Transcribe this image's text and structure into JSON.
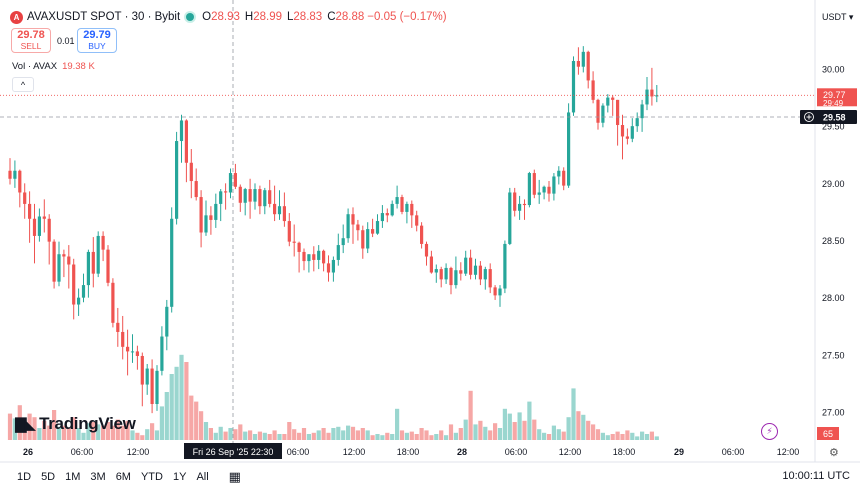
{
  "header": {
    "coin_icon_text": "A",
    "symbol": "AVAXUSDT SPOT · 30 · Bybit",
    "ohlc": [
      {
        "label": "O",
        "value": "28.93"
      },
      {
        "label": "H",
        "value": "28.99"
      },
      {
        "label": "L",
        "value": "28.83"
      },
      {
        "label": "C",
        "value": "28.88"
      }
    ],
    "change": "−0.05 (−0.17%)"
  },
  "trade": {
    "sell_price": "29.78",
    "sell_label": "SELL",
    "spread": "0.01",
    "buy_price": "29.79",
    "buy_label": "BUY"
  },
  "volume_indicator": {
    "label": "Vol · AVAX",
    "value": "19.38 K"
  },
  "collapse_icon": "chevron-up-icon",
  "currency": "USDT",
  "logo_text": "TradingView",
  "crosshair_label": "Fri 26 Sep '25   22:30",
  "timeframes": [
    "1D",
    "5D",
    "1M",
    "3M",
    "6M",
    "YTD",
    "1Y",
    "All"
  ],
  "time_display": "10:00:11 UTC",
  "colors": {
    "up": "#26a69a",
    "down": "#ef5350",
    "up_vol": "#9ad6cf",
    "down_vol": "#f6a7a6",
    "grid": "#f0f3fa"
  },
  "chart_data": {
    "type": "candlestick",
    "ylim": [
      26.7,
      30.5
    ],
    "y_ticks": [
      27.0,
      27.5,
      28.0,
      28.5,
      29.0,
      29.5,
      30.0
    ],
    "x_ticks": [
      "26",
      "06:00",
      "12:00",
      "06:00",
      "12:00",
      "18:00",
      "28",
      "06:00",
      "12:00",
      "18:00",
      "29",
      "06:00",
      "12:00"
    ],
    "price_labels": [
      {
        "value": "29.77",
        "sub": "29:49",
        "type": "last"
      },
      {
        "value": "29.58",
        "type": "crosshair"
      }
    ],
    "volume_last": "65",
    "candles": [
      [
        29.11,
        29.04,
        29.22,
        28.99,
        2.2
      ],
      [
        29.04,
        29.11,
        29.2,
        28.96,
        1.8
      ],
      [
        29.11,
        28.92,
        29.12,
        28.79,
        2.9
      ],
      [
        28.92,
        28.82,
        29.0,
        28.69,
        1.2
      ],
      [
        28.82,
        28.69,
        28.93,
        28.48,
        2.2
      ],
      [
        28.69,
        28.54,
        28.82,
        28.3,
        1.9
      ],
      [
        28.54,
        28.71,
        28.78,
        28.49,
        1.0
      ],
      [
        28.71,
        28.69,
        28.86,
        28.57,
        1.6
      ],
      [
        28.69,
        28.49,
        28.73,
        28.29,
        1.2
      ],
      [
        28.49,
        28.14,
        28.51,
        28.08,
        2.5
      ],
      [
        28.14,
        28.38,
        28.49,
        28.1,
        1.1
      ],
      [
        28.38,
        28.36,
        28.42,
        28.18,
        1.2
      ],
      [
        28.36,
        28.29,
        28.46,
        28.08,
        1.0
      ],
      [
        28.29,
        27.94,
        28.34,
        27.81,
        1.9
      ],
      [
        27.94,
        28.0,
        28.08,
        27.84,
        1.0
      ],
      [
        28.0,
        28.11,
        28.21,
        27.96,
        0.6
      ],
      [
        28.11,
        28.4,
        28.42,
        28.0,
        1.4
      ],
      [
        28.4,
        28.21,
        28.53,
        28.09,
        1.5
      ],
      [
        28.21,
        28.54,
        28.58,
        28.18,
        1.3
      ],
      [
        28.54,
        28.42,
        28.58,
        28.32,
        1.2
      ],
      [
        28.42,
        28.13,
        28.46,
        28.1,
        1.5
      ],
      [
        28.13,
        27.78,
        28.17,
        27.74,
        1.2
      ],
      [
        27.78,
        27.7,
        27.91,
        27.57,
        1.7
      ],
      [
        27.7,
        27.57,
        27.84,
        27.46,
        1.2
      ],
      [
        27.57,
        27.53,
        27.72,
        27.32,
        1.6
      ],
      [
        27.53,
        27.53,
        27.68,
        27.43,
        0.8
      ],
      [
        27.53,
        27.49,
        27.58,
        27.37,
        0.6
      ],
      [
        27.49,
        27.24,
        27.52,
        27.05,
        0.4
      ],
      [
        27.24,
        27.38,
        27.42,
        27.15,
        0.9
      ],
      [
        27.38,
        27.07,
        27.46,
        26.99,
        1.4
      ],
      [
        27.07,
        27.36,
        27.41,
        27.01,
        0.8
      ],
      [
        27.36,
        27.66,
        27.75,
        27.32,
        2.8
      ],
      [
        27.66,
        27.92,
        27.98,
        27.54,
        4.0
      ],
      [
        27.92,
        28.69,
        28.79,
        27.87,
        5.5
      ],
      [
        28.69,
        29.37,
        29.45,
        28.64,
        6.1
      ],
      [
        29.37,
        29.55,
        29.6,
        29.18,
        7.1
      ],
      [
        29.55,
        29.18,
        29.56,
        29.01,
        6.5
      ],
      [
        29.18,
        29.02,
        29.3,
        28.87,
        3.7
      ],
      [
        29.02,
        28.88,
        29.13,
        28.85,
        3.2
      ],
      [
        28.88,
        28.57,
        28.94,
        28.44,
        2.4
      ],
      [
        28.57,
        28.72,
        28.85,
        28.54,
        1.5
      ],
      [
        28.72,
        28.68,
        28.8,
        28.55,
        1.0
      ],
      [
        28.68,
        28.82,
        28.91,
        28.61,
        0.6
      ],
      [
        28.82,
        28.93,
        28.95,
        28.67,
        1.1
      ],
      [
        28.93,
        28.92,
        29.0,
        28.77,
        0.7
      ],
      [
        28.92,
        29.09,
        29.13,
        28.87,
        1.0
      ],
      [
        29.09,
        28.97,
        29.17,
        28.95,
        0.9
      ],
      [
        28.97,
        28.83,
        28.99,
        28.75,
        1.3
      ],
      [
        28.83,
        28.95,
        28.96,
        28.72,
        0.7
      ],
      [
        28.95,
        28.84,
        29.04,
        28.69,
        0.8
      ],
      [
        28.84,
        28.95,
        29.0,
        28.77,
        0.5
      ],
      [
        28.95,
        28.8,
        28.98,
        28.73,
        0.7
      ],
      [
        28.8,
        28.94,
        28.96,
        28.73,
        0.6
      ],
      [
        28.94,
        28.82,
        29.03,
        28.79,
        0.5
      ],
      [
        28.82,
        28.73,
        28.98,
        28.67,
        0.8
      ],
      [
        28.73,
        28.8,
        28.94,
        28.68,
        0.5
      ],
      [
        28.8,
        28.67,
        28.92,
        28.62,
        0.5
      ],
      [
        28.67,
        28.49,
        28.74,
        28.45,
        1.5
      ],
      [
        28.49,
        28.48,
        28.64,
        28.36,
        0.9
      ],
      [
        28.48,
        28.4,
        28.49,
        28.22,
        0.6
      ],
      [
        28.4,
        28.32,
        28.43,
        28.24,
        1.0
      ],
      [
        28.32,
        28.38,
        28.38,
        28.22,
        0.5
      ],
      [
        28.38,
        28.33,
        28.45,
        28.23,
        0.6
      ],
      [
        28.33,
        28.41,
        28.46,
        28.25,
        0.8
      ],
      [
        28.41,
        28.3,
        28.42,
        28.23,
        1.0
      ],
      [
        28.3,
        28.22,
        28.37,
        28.14,
        0.6
      ],
      [
        28.22,
        28.33,
        28.36,
        28.14,
        1.0
      ],
      [
        28.33,
        28.46,
        28.56,
        28.28,
        1.1
      ],
      [
        28.46,
        28.52,
        28.64,
        28.39,
        0.8
      ],
      [
        28.52,
        28.73,
        28.78,
        28.48,
        1.2
      ],
      [
        28.73,
        28.64,
        28.79,
        28.47,
        1.1
      ],
      [
        28.64,
        28.59,
        28.68,
        28.5,
        0.8
      ],
      [
        28.59,
        28.43,
        28.63,
        28.34,
        1.0
      ],
      [
        28.43,
        28.6,
        28.66,
        28.39,
        0.8
      ],
      [
        28.6,
        28.56,
        28.69,
        28.53,
        0.4
      ],
      [
        28.56,
        28.67,
        28.73,
        28.55,
        0.5
      ],
      [
        28.67,
        28.74,
        28.81,
        28.61,
        0.4
      ],
      [
        28.74,
        28.72,
        28.78,
        28.66,
        0.6
      ],
      [
        28.72,
        28.82,
        28.85,
        28.71,
        0.5
      ],
      [
        28.82,
        28.88,
        28.98,
        28.78,
        2.6
      ],
      [
        28.88,
        28.75,
        28.9,
        28.73,
        0.8
      ],
      [
        28.75,
        28.82,
        28.84,
        28.65,
        0.6
      ],
      [
        28.82,
        28.72,
        28.85,
        28.61,
        0.7
      ],
      [
        28.72,
        28.63,
        28.76,
        28.58,
        0.5
      ],
      [
        28.63,
        28.47,
        28.66,
        28.43,
        1.0
      ],
      [
        28.47,
        28.36,
        28.49,
        28.28,
        0.8
      ],
      [
        28.36,
        28.22,
        28.41,
        28.21,
        0.4
      ],
      [
        28.22,
        28.25,
        28.29,
        28.13,
        0.5
      ],
      [
        28.25,
        28.16,
        28.27,
        28.09,
        0.8
      ],
      [
        28.16,
        28.26,
        28.3,
        28.12,
        0.4
      ],
      [
        28.26,
        28.11,
        28.27,
        28.03,
        1.3
      ],
      [
        28.11,
        28.24,
        28.36,
        28.08,
        0.6
      ],
      [
        28.24,
        28.21,
        28.31,
        28.15,
        1.0
      ],
      [
        28.21,
        28.35,
        28.41,
        28.19,
        1.7
      ],
      [
        28.35,
        28.2,
        28.42,
        28.16,
        4.1
      ],
      [
        28.2,
        28.28,
        28.34,
        28.16,
        1.3
      ],
      [
        28.28,
        28.16,
        28.32,
        28.11,
        1.6
      ],
      [
        28.16,
        28.25,
        28.27,
        28.07,
        1.1
      ],
      [
        28.25,
        28.09,
        28.3,
        28.04,
        0.8
      ],
      [
        28.09,
        28.02,
        28.11,
        27.98,
        1.4
      ],
      [
        28.02,
        28.08,
        28.11,
        27.92,
        1.0
      ],
      [
        28.08,
        28.47,
        28.5,
        28.04,
        2.6
      ],
      [
        28.47,
        28.92,
        28.96,
        28.46,
        2.2
      ],
      [
        28.92,
        28.76,
        28.96,
        28.71,
        1.5
      ],
      [
        28.76,
        28.82,
        28.89,
        28.68,
        2.3
      ],
      [
        28.82,
        28.81,
        28.86,
        28.68,
        1.6
      ],
      [
        28.81,
        29.09,
        29.1,
        28.79,
        3.2
      ],
      [
        29.09,
        28.9,
        29.12,
        28.87,
        1.7
      ],
      [
        28.9,
        28.92,
        29.03,
        28.82,
        0.9
      ],
      [
        28.92,
        28.97,
        28.98,
        28.86,
        0.6
      ],
      [
        28.97,
        28.91,
        29.02,
        28.84,
        0.5
      ],
      [
        28.91,
        29.06,
        29.09,
        28.85,
        1.2
      ],
      [
        29.06,
        29.11,
        29.15,
        28.99,
        0.9
      ],
      [
        29.11,
        28.98,
        29.14,
        28.94,
        0.7
      ],
      [
        28.98,
        29.62,
        29.7,
        28.96,
        1.9
      ],
      [
        29.62,
        30.07,
        30.11,
        29.59,
        4.3
      ],
      [
        30.07,
        30.02,
        30.19,
        29.95,
        2.4
      ],
      [
        30.02,
        30.15,
        30.2,
        29.97,
        2.1
      ],
      [
        30.15,
        29.9,
        30.16,
        29.83,
        1.6
      ],
      [
        29.9,
        29.73,
        29.98,
        29.7,
        1.3
      ],
      [
        29.73,
        29.53,
        29.74,
        29.47,
        0.9
      ],
      [
        29.53,
        29.68,
        29.7,
        29.49,
        0.6
      ],
      [
        29.68,
        29.75,
        29.78,
        29.62,
        0.4
      ],
      [
        29.75,
        29.73,
        29.77,
        29.59,
        0.5
      ],
      [
        29.73,
        29.51,
        29.73,
        29.33,
        0.7
      ],
      [
        29.51,
        29.41,
        29.6,
        29.21,
        0.5
      ],
      [
        29.41,
        29.39,
        29.48,
        29.34,
        0.8
      ],
      [
        29.39,
        29.5,
        29.57,
        29.36,
        0.6
      ],
      [
        29.5,
        29.57,
        29.62,
        29.45,
        0.3
      ],
      [
        29.57,
        29.69,
        29.73,
        29.45,
        0.7
      ],
      [
        29.69,
        29.82,
        29.93,
        29.64,
        0.5
      ],
      [
        29.82,
        29.76,
        30.01,
        29.68,
        0.7
      ],
      [
        29.76,
        29.77,
        29.86,
        29.71,
        0.3
      ]
    ]
  }
}
